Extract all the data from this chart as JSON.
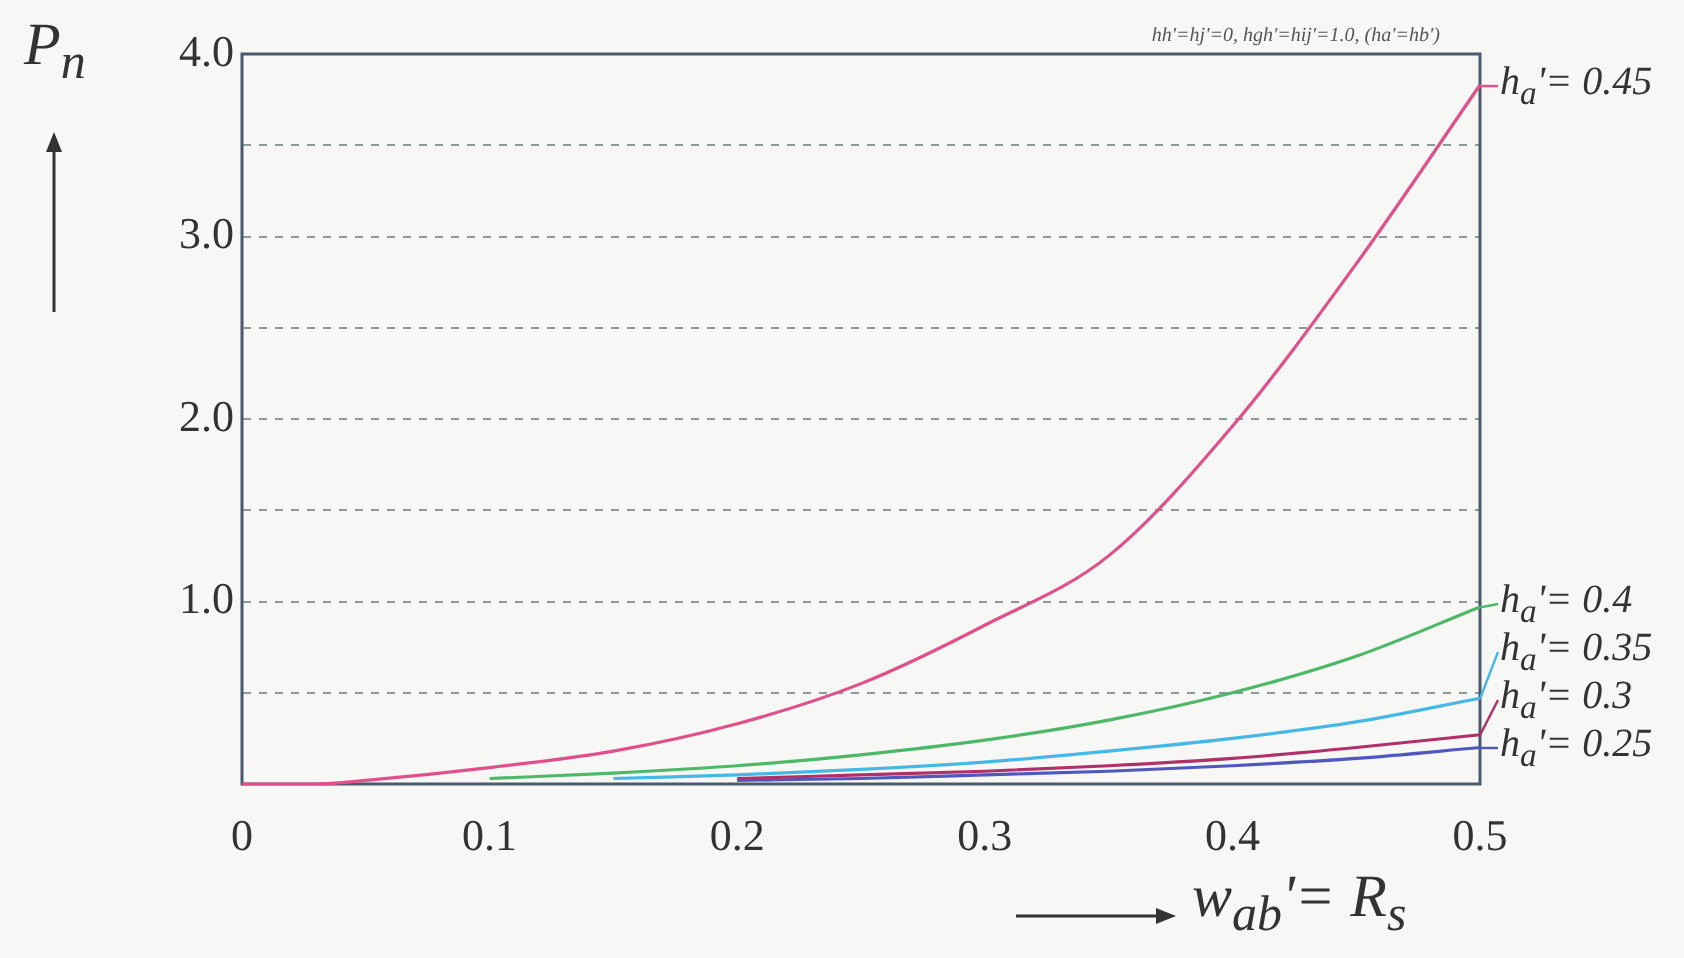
{
  "chart_data": {
    "type": "line",
    "ylabel": "P$_{n}$",
    "xlabel": "w$_{ab}$'= R$_{s}$",
    "annotations": [
      "hh'=hj'=0, hgh'=hij'=1.0, (ha'=hb')"
    ],
    "x": [
      0,
      0.03,
      0.05,
      0.1,
      0.15,
      0.2,
      0.25,
      0.3,
      0.35,
      0.4,
      0.45,
      0.5
    ],
    "series": [
      {
        "name": "h$_{a}$'= 0.45",
        "color": "#e0508a",
        "values": [
          0,
          0,
          0.02,
          0.09,
          0.18,
          0.33,
          0.55,
          0.87,
          1.25,
          1.96,
          2.85,
          3.83
        ]
      },
      {
        "name": "h$_{a}$'= 0.4",
        "color": "#4cb868",
        "values": [
          null,
          null,
          null,
          0.03,
          0.06,
          0.1,
          0.16,
          0.24,
          0.35,
          0.5,
          0.7,
          0.97
        ]
      },
      {
        "name": "h$_{a}$'= 0.35",
        "color": "#46b8e8",
        "values": [
          null,
          null,
          null,
          null,
          0.03,
          0.05,
          0.08,
          0.12,
          0.18,
          0.25,
          0.34,
          0.47
        ]
      },
      {
        "name": "h$_{a}$'= 0.3",
        "color": "#b0306a",
        "values": [
          null,
          null,
          null,
          null,
          null,
          0.03,
          0.05,
          0.07,
          0.1,
          0.14,
          0.2,
          0.27
        ]
      },
      {
        "name": "h$_{a}$'= 0.25",
        "color": "#5058c0",
        "values": [
          null,
          null,
          null,
          null,
          null,
          0.02,
          0.03,
          0.05,
          0.07,
          0.1,
          0.14,
          0.2
        ]
      }
    ],
    "xlim": [
      0,
      0.5
    ],
    "xticks": [
      0,
      0.1,
      0.2,
      0.3,
      0.4,
      0.5
    ],
    "ylim": [
      0,
      4
    ],
    "yticks": [
      {
        "value": 0.5,
        "label": null
      },
      {
        "value": 1,
        "label": "1.0"
      },
      {
        "value": 1.5,
        "label": null
      },
      {
        "value": 2,
        "label": "2.0"
      },
      {
        "value": 2.5,
        "label": null
      },
      {
        "value": 3,
        "label": "3.0"
      },
      {
        "value": 3.5,
        "label": null
      },
      {
        "value": 4,
        "label": "4.0"
      }
    ],
    "grid": "y",
    "line_style": "solid",
    "marker": "none",
    "legend": "right"
  }
}
